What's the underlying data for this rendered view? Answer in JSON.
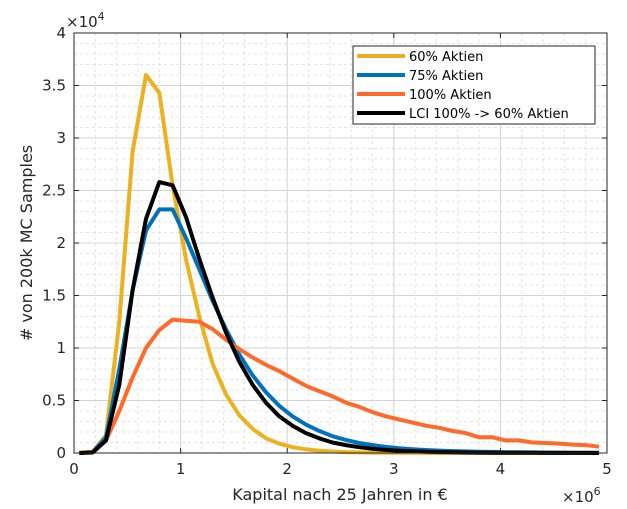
{
  "chart_data": {
    "type": "line",
    "title": "",
    "xlabel": "Kapital nach 25 Jahren in €",
    "ylabel": "# von 200k MC Samples",
    "xlim": [
      0,
      5000000
    ],
    "ylim": [
      0,
      40000
    ],
    "x_exponent_label": "×10",
    "x_exponent": "6",
    "y_exponent_label": "×10",
    "y_exponent": "4",
    "x_ticks": [
      0,
      1000000,
      2000000,
      3000000,
      4000000,
      5000000
    ],
    "x_tick_labels": [
      "0",
      "1",
      "2",
      "3",
      "4",
      "5"
    ],
    "y_ticks": [
      0,
      5000,
      10000,
      15000,
      20000,
      25000,
      30000,
      35000,
      40000
    ],
    "y_tick_labels": [
      "0",
      "0.5",
      "1",
      "1.5",
      "2",
      "2.5",
      "3",
      "3.5",
      "4"
    ],
    "grid": true,
    "minor_grid": true,
    "legend_position": "top-right",
    "x": [
      50000,
      175000,
      300000,
      425000,
      550000,
      675000,
      800000,
      925000,
      1050000,
      1175000,
      1300000,
      1425000,
      1550000,
      1675000,
      1800000,
      1925000,
      2050000,
      2175000,
      2300000,
      2425000,
      2550000,
      2675000,
      2800000,
      2925000,
      3050000,
      3175000,
      3300000,
      3425000,
      3550000,
      3675000,
      3800000,
      3925000,
      4050000,
      4175000,
      4300000,
      4425000,
      4550000,
      4675000,
      4800000,
      4925000
    ],
    "series": [
      {
        "name": "60% Aktien",
        "color": "#EDB120",
        "values": [
          0,
          100,
          1700,
          12500,
          28700,
          36000,
          34300,
          25500,
          18500,
          13000,
          8500,
          5600,
          3600,
          2300,
          1400,
          900,
          550,
          350,
          220,
          140,
          90,
          60,
          40,
          30,
          20,
          15,
          10,
          8,
          6,
          5,
          4,
          3,
          2,
          2,
          1,
          1,
          1,
          0,
          0,
          0
        ]
      },
      {
        "name": "75% Aktien",
        "color": "#0072BD",
        "values": [
          0,
          100,
          1500,
          8000,
          15500,
          21200,
          23200,
          23200,
          20500,
          17500,
          14500,
          11800,
          9400,
          7400,
          5800,
          4500,
          3500,
          2700,
          2100,
          1600,
          1250,
          950,
          750,
          580,
          450,
          360,
          290,
          230,
          180,
          150,
          120,
          100,
          80,
          65,
          55,
          45,
          35,
          30,
          25,
          20
        ]
      },
      {
        "name": "100% Aktien",
        "color": "#FF6929",
        "values": [
          0,
          100,
          1200,
          4000,
          7200,
          10000,
          11700,
          12700,
          12600,
          12500,
          11800,
          10800,
          9900,
          9100,
          8400,
          7800,
          7100,
          6400,
          5900,
          5400,
          4800,
          4400,
          3900,
          3500,
          3200,
          2900,
          2600,
          2400,
          2100,
          1900,
          1500,
          1500,
          1200,
          1200,
          1000,
          950,
          900,
          800,
          750,
          600
        ]
      },
      {
        "name": "LCI 100% -> 60% Aktien",
        "color": "#000000",
        "values": [
          0,
          50,
          1200,
          6500,
          15500,
          22300,
          25800,
          25500,
          22500,
          18500,
          14800,
          11500,
          8700,
          6500,
          4800,
          3500,
          2600,
          1900,
          1400,
          1000,
          750,
          550,
          400,
          300,
          220,
          160,
          120,
          90,
          70,
          50,
          40,
          30,
          25,
          20,
          15,
          10,
          8,
          6,
          5,
          4
        ]
      }
    ]
  }
}
